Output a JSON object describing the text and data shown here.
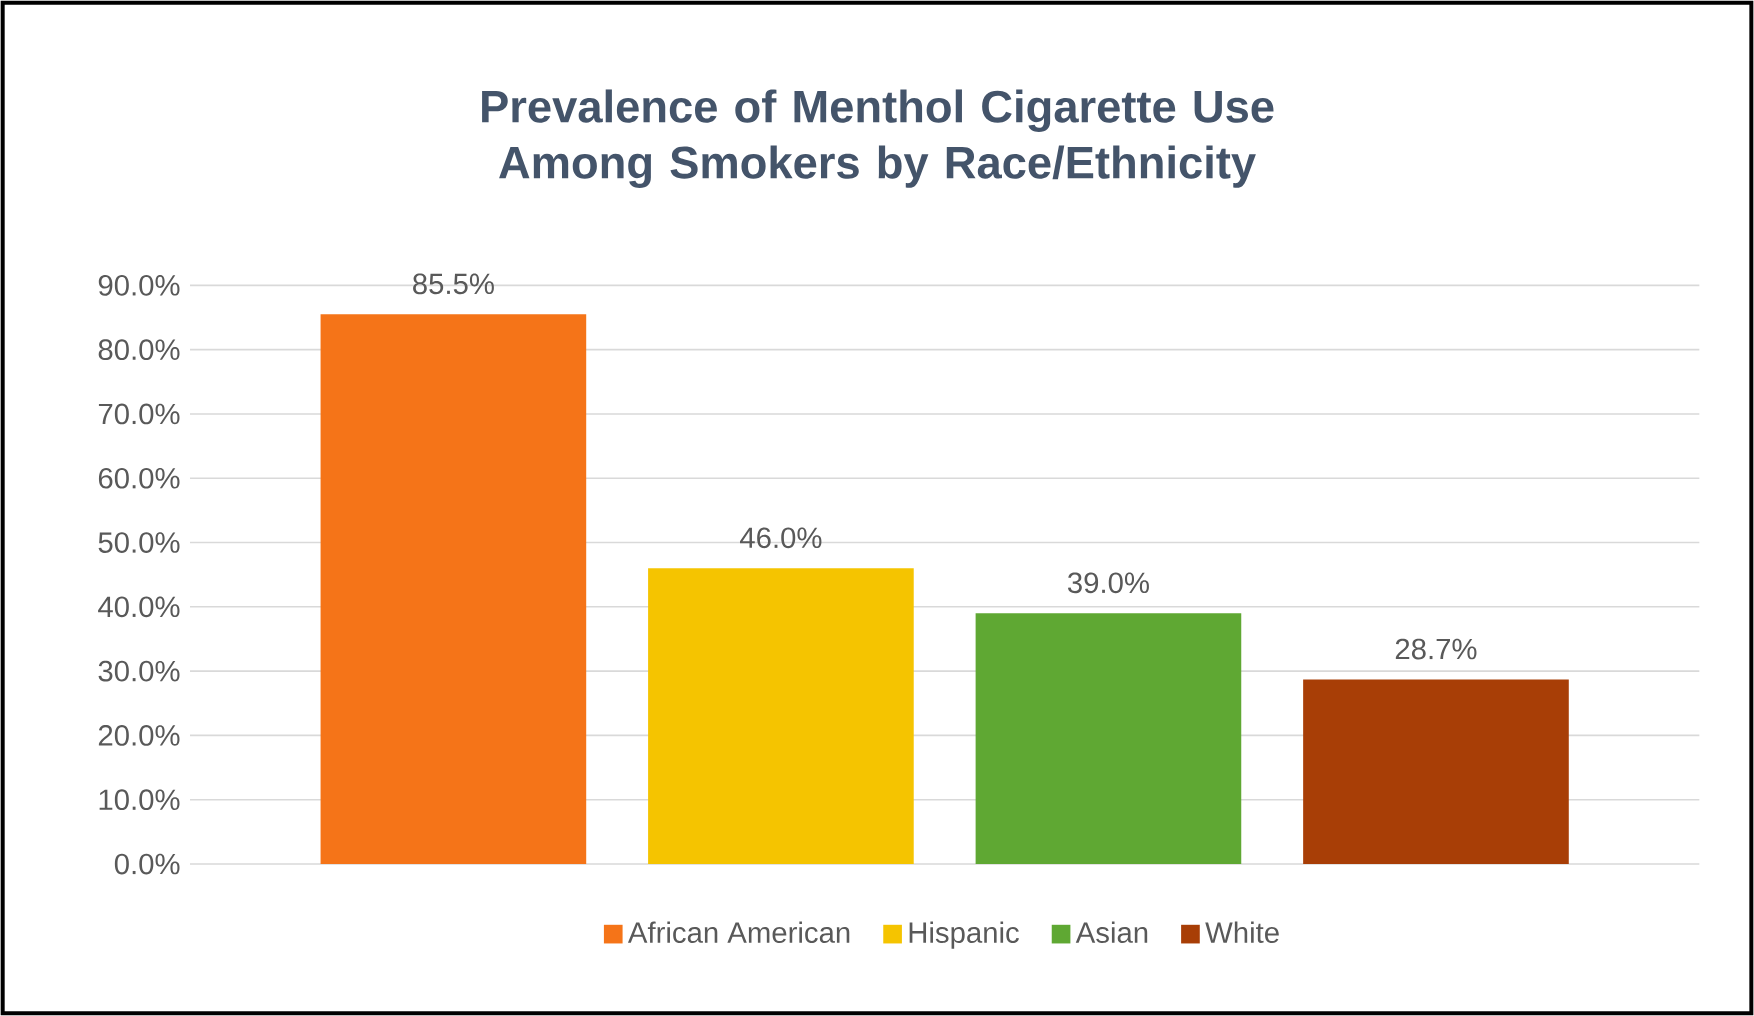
{
  "chart_data": {
    "type": "bar",
    "title": "Prevalence of Menthol Cigarette Use Among Smokers by Race/Ethnicity",
    "categories": [
      null
    ],
    "series": [
      {
        "name": "African American",
        "color": "#f57418",
        "values": [
          85.5
        ],
        "value_labels": [
          "85.5%"
        ]
      },
      {
        "name": "Hispanic",
        "color": "#f5c400",
        "values": [
          46.0
        ],
        "value_labels": [
          "46.0%"
        ]
      },
      {
        "name": "Asian",
        "color": "#5fa833",
        "values": [
          39.0
        ],
        "value_labels": [
          "39.0%"
        ]
      },
      {
        "name": "White",
        "color": "#a83e06",
        "values": [
          28.7
        ],
        "value_labels": [
          "28.7%"
        ]
      }
    ],
    "ylim": [
      0,
      90
    ],
    "yticks": [
      {
        "value": 0,
        "label": "0.0%"
      },
      {
        "value": 10,
        "label": "10.0%"
      },
      {
        "value": 20,
        "label": "20.0%"
      },
      {
        "value": 30,
        "label": "30.0%"
      },
      {
        "value": 40,
        "label": "40.0%"
      },
      {
        "value": 50,
        "label": "50.0%"
      },
      {
        "value": 60,
        "label": "60.0%"
      },
      {
        "value": 70,
        "label": "70.0%"
      },
      {
        "value": 80,
        "label": "80.0%"
      },
      {
        "value": 90,
        "label": "90.0%"
      }
    ],
    "grid": "y",
    "legend": "bottom"
  }
}
